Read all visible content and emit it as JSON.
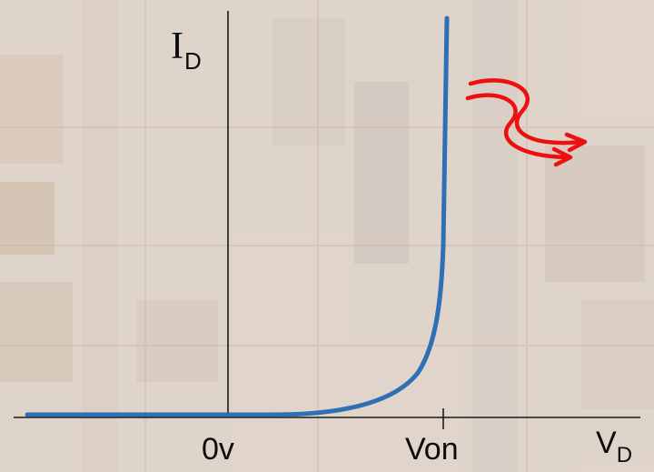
{
  "diagram": {
    "y_axis_label": "I",
    "y_axis_subscript": "D",
    "x_axis_label": "V",
    "x_axis_subscript": "D",
    "origin_label": "0v",
    "threshold_label": "Von",
    "colors": {
      "curve": "#2f6fb3",
      "arrow": "#ee1010",
      "axis": "#1a1a1a",
      "text": "#0d0d0d"
    },
    "icons": [
      "light-emission-arrow-icon"
    ]
  }
}
